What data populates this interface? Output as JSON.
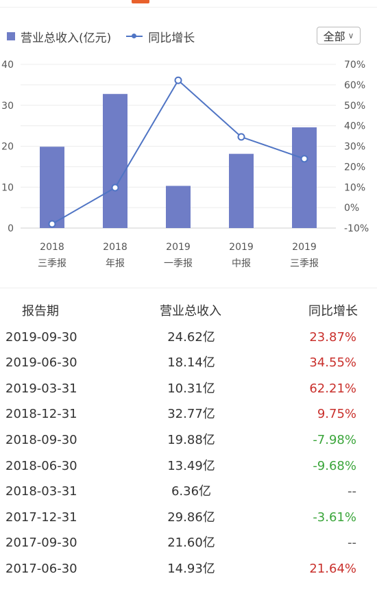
{
  "legend": {
    "revenue_label": "营业总收入(亿元)",
    "growth_label": "同比增长"
  },
  "filter": {
    "selected": "全部"
  },
  "chart_data": {
    "type": "bar",
    "categories": [
      "2018\n三季报",
      "2018\n年报",
      "2019\n一季报",
      "2019\n中报",
      "2019\n三季报"
    ],
    "series": [
      {
        "name": "营业总收入(亿元)",
        "type": "bar",
        "axis": "left",
        "values": [
          19.88,
          32.77,
          10.31,
          18.14,
          24.62
        ]
      },
      {
        "name": "同比增长",
        "type": "line",
        "axis": "right",
        "values": [
          -7.98,
          9.75,
          62.21,
          34.55,
          23.87
        ]
      }
    ],
    "y_left": {
      "ticks": [
        "0",
        "10",
        "20",
        "30",
        "40"
      ],
      "ylim": [
        0,
        40
      ]
    },
    "y_right": {
      "ticks": [
        "-10%",
        "0%",
        "10%",
        "20%",
        "30%",
        "40%",
        "50%",
        "60%",
        "70%"
      ],
      "ylim": [
        -10,
        70
      ]
    },
    "grid": true,
    "legend_position": "top-left",
    "colors": {
      "bar": "#6f7dc6",
      "line": "#4f74c4"
    }
  },
  "table": {
    "headers": [
      "报告期",
      "营业总收入",
      "同比增长"
    ],
    "rows": [
      {
        "date": "2019-09-30",
        "revenue": "24.62亿",
        "growth": "23.87%",
        "trend": "pos"
      },
      {
        "date": "2019-06-30",
        "revenue": "18.14亿",
        "growth": "34.55%",
        "trend": "pos"
      },
      {
        "date": "2019-03-31",
        "revenue": "10.31亿",
        "growth": "62.21%",
        "trend": "pos"
      },
      {
        "date": "2018-12-31",
        "revenue": "32.77亿",
        "growth": "9.75%",
        "trend": "pos"
      },
      {
        "date": "2018-09-30",
        "revenue": "19.88亿",
        "growth": "-7.98%",
        "trend": "neg"
      },
      {
        "date": "2018-06-30",
        "revenue": "13.49亿",
        "growth": "-9.68%",
        "trend": "neg"
      },
      {
        "date": "2018-03-31",
        "revenue": "6.36亿",
        "growth": "--",
        "trend": "na"
      },
      {
        "date": "2017-12-31",
        "revenue": "29.86亿",
        "growth": "-3.61%",
        "trend": "neg"
      },
      {
        "date": "2017-09-30",
        "revenue": "21.60亿",
        "growth": "--",
        "trend": "na"
      },
      {
        "date": "2017-06-30",
        "revenue": "14.93亿",
        "growth": "21.64%",
        "trend": "pos"
      }
    ]
  },
  "colors": {
    "positive": "#c9302c",
    "negative": "#3aa53a",
    "accent": "#e8612c"
  }
}
